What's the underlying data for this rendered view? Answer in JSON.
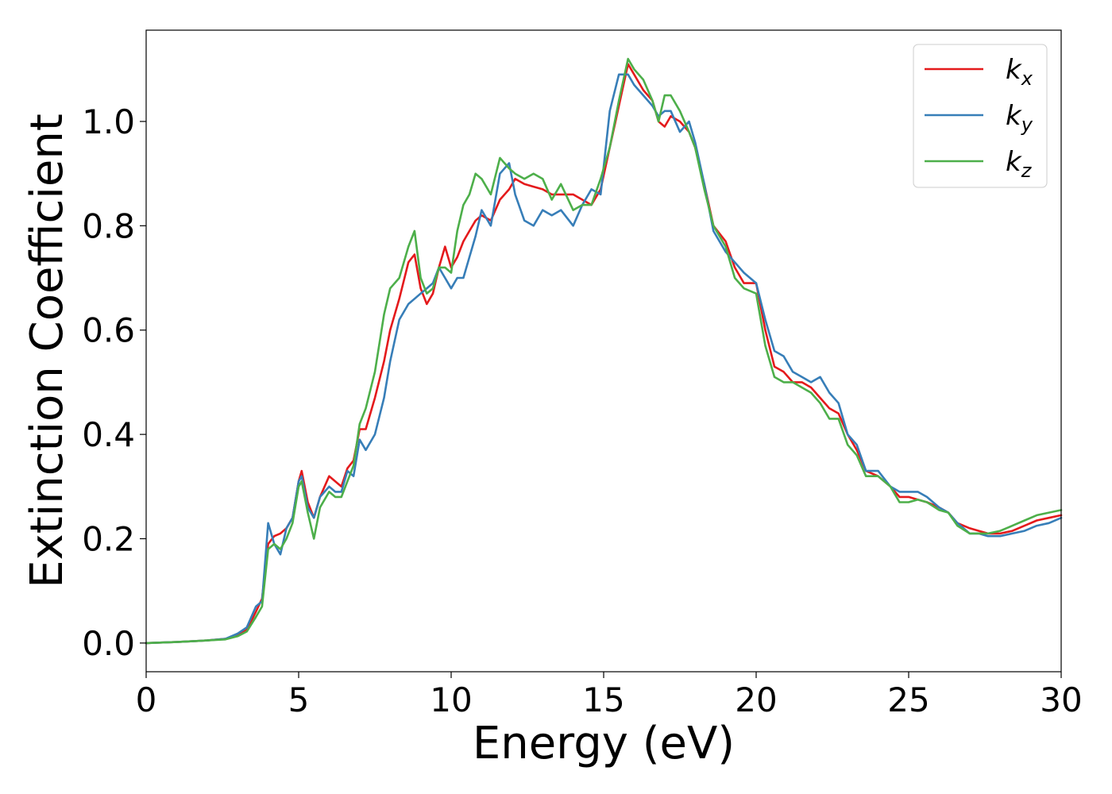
{
  "chart_data": {
    "type": "line",
    "xlabel": "Energy (eV)",
    "ylabel": "Extinction Coefficient",
    "xlim": [
      0,
      30
    ],
    "ylim": [
      -0.055,
      1.175
    ],
    "xticks": [
      0,
      5,
      10,
      15,
      20,
      25,
      30
    ],
    "xtick_labels": [
      "0",
      "5",
      "10",
      "15",
      "20",
      "25",
      "30"
    ],
    "yticks": [
      0.0,
      0.2,
      0.4,
      0.6,
      0.8,
      1.0
    ],
    "ytick_labels": [
      "0.0",
      "0.2",
      "0.4",
      "0.6",
      "0.8",
      "1.0"
    ],
    "grid": false,
    "legend_position": "top-right",
    "series": [
      {
        "name": "k",
        "subscript": "x",
        "color": "#e41a1c",
        "x": [
          0,
          1,
          2,
          2.6,
          3.0,
          3.3,
          3.6,
          3.8,
          4.0,
          4.2,
          4.4,
          4.6,
          4.8,
          5.0,
          5.1,
          5.3,
          5.5,
          5.7,
          6.0,
          6.2,
          6.4,
          6.6,
          6.8,
          7.0,
          7.2,
          7.5,
          7.8,
          8.0,
          8.3,
          8.6,
          8.8,
          9.0,
          9.2,
          9.4,
          9.6,
          9.8,
          10.0,
          10.2,
          10.4,
          10.6,
          10.8,
          11.0,
          11.3,
          11.6,
          11.9,
          12.1,
          12.4,
          12.7,
          13.0,
          13.3,
          13.6,
          14.0,
          14.3,
          14.6,
          14.9,
          15.2,
          15.5,
          15.8,
          16.0,
          16.3,
          16.6,
          16.8,
          17.0,
          17.2,
          17.5,
          17.8,
          18.0,
          18.3,
          18.6,
          19.0,
          19.3,
          19.6,
          20.0,
          20.3,
          20.6,
          20.9,
          21.2,
          21.5,
          21.8,
          22.1,
          22.4,
          22.7,
          23.0,
          23.3,
          23.6,
          24.0,
          24.4,
          24.7,
          25.0,
          25.3,
          25.6,
          26.0,
          26.3,
          26.6,
          27.0,
          27.3,
          27.6,
          28.0,
          28.4,
          28.8,
          29.2,
          29.6,
          30.0
        ],
        "y": [
          0.0,
          0.002,
          0.005,
          0.008,
          0.015,
          0.025,
          0.06,
          0.085,
          0.19,
          0.205,
          0.21,
          0.22,
          0.24,
          0.31,
          0.33,
          0.27,
          0.24,
          0.28,
          0.32,
          0.31,
          0.3,
          0.335,
          0.35,
          0.41,
          0.41,
          0.47,
          0.54,
          0.6,
          0.66,
          0.73,
          0.745,
          0.68,
          0.65,
          0.67,
          0.72,
          0.76,
          0.72,
          0.74,
          0.77,
          0.79,
          0.81,
          0.82,
          0.81,
          0.85,
          0.87,
          0.89,
          0.88,
          0.875,
          0.87,
          0.86,
          0.86,
          0.86,
          0.85,
          0.84,
          0.87,
          0.95,
          1.03,
          1.11,
          1.09,
          1.06,
          1.04,
          1.0,
          0.99,
          1.01,
          1.0,
          0.98,
          0.95,
          0.88,
          0.8,
          0.77,
          0.72,
          0.69,
          0.69,
          0.6,
          0.53,
          0.52,
          0.5,
          0.5,
          0.49,
          0.47,
          0.45,
          0.44,
          0.4,
          0.37,
          0.33,
          0.32,
          0.3,
          0.28,
          0.28,
          0.275,
          0.27,
          0.26,
          0.25,
          0.23,
          0.22,
          0.215,
          0.21,
          0.21,
          0.215,
          0.225,
          0.235,
          0.24,
          0.245
        ]
      },
      {
        "name": "k",
        "subscript": "y",
        "color": "#377eb8",
        "x": [
          0,
          1,
          2,
          2.6,
          3.0,
          3.3,
          3.6,
          3.8,
          4.0,
          4.2,
          4.4,
          4.6,
          4.8,
          5.0,
          5.1,
          5.3,
          5.5,
          5.7,
          6.0,
          6.2,
          6.4,
          6.6,
          6.8,
          7.0,
          7.2,
          7.5,
          7.8,
          8.0,
          8.3,
          8.6,
          8.8,
          9.0,
          9.2,
          9.4,
          9.6,
          9.8,
          10.0,
          10.2,
          10.4,
          10.6,
          10.8,
          11.0,
          11.3,
          11.6,
          11.9,
          12.1,
          12.4,
          12.7,
          13.0,
          13.3,
          13.6,
          14.0,
          14.3,
          14.6,
          14.9,
          15.2,
          15.5,
          15.8,
          16.0,
          16.3,
          16.6,
          16.8,
          17.0,
          17.2,
          17.5,
          17.8,
          18.0,
          18.3,
          18.6,
          19.0,
          19.3,
          19.6,
          20.0,
          20.3,
          20.6,
          20.9,
          21.2,
          21.5,
          21.8,
          22.1,
          22.4,
          22.7,
          23.0,
          23.3,
          23.6,
          24.0,
          24.4,
          24.7,
          25.0,
          25.3,
          25.6,
          26.0,
          26.3,
          26.6,
          27.0,
          27.3,
          27.6,
          28.0,
          28.4,
          28.8,
          29.2,
          29.6,
          30.0
        ],
        "y": [
          0.0,
          0.002,
          0.005,
          0.008,
          0.018,
          0.03,
          0.07,
          0.08,
          0.23,
          0.19,
          0.17,
          0.22,
          0.24,
          0.31,
          0.32,
          0.26,
          0.24,
          0.28,
          0.3,
          0.29,
          0.29,
          0.33,
          0.32,
          0.39,
          0.37,
          0.4,
          0.47,
          0.54,
          0.62,
          0.65,
          0.66,
          0.67,
          0.68,
          0.69,
          0.72,
          0.7,
          0.68,
          0.7,
          0.7,
          0.74,
          0.78,
          0.83,
          0.8,
          0.9,
          0.92,
          0.86,
          0.81,
          0.8,
          0.83,
          0.82,
          0.83,
          0.8,
          0.84,
          0.87,
          0.86,
          1.02,
          1.09,
          1.09,
          1.07,
          1.05,
          1.03,
          1.01,
          1.02,
          1.02,
          0.98,
          1.0,
          0.96,
          0.88,
          0.79,
          0.75,
          0.73,
          0.71,
          0.69,
          0.62,
          0.56,
          0.55,
          0.52,
          0.51,
          0.5,
          0.51,
          0.48,
          0.46,
          0.4,
          0.38,
          0.33,
          0.33,
          0.3,
          0.29,
          0.29,
          0.29,
          0.28,
          0.26,
          0.25,
          0.23,
          0.21,
          0.21,
          0.205,
          0.205,
          0.21,
          0.215,
          0.225,
          0.23,
          0.24
        ]
      },
      {
        "name": "k",
        "subscript": "z",
        "color": "#4daf4a",
        "x": [
          0,
          1,
          2,
          2.6,
          3.0,
          3.3,
          3.6,
          3.8,
          4.0,
          4.2,
          4.4,
          4.6,
          4.8,
          5.0,
          5.1,
          5.3,
          5.5,
          5.7,
          6.0,
          6.2,
          6.4,
          6.6,
          6.8,
          7.0,
          7.2,
          7.5,
          7.8,
          8.0,
          8.3,
          8.6,
          8.8,
          9.0,
          9.2,
          9.4,
          9.6,
          9.8,
          10.0,
          10.2,
          10.4,
          10.6,
          10.8,
          11.0,
          11.3,
          11.6,
          11.9,
          12.1,
          12.4,
          12.7,
          13.0,
          13.3,
          13.6,
          14.0,
          14.3,
          14.6,
          14.9,
          15.2,
          15.5,
          15.8,
          16.0,
          16.3,
          16.6,
          16.8,
          17.0,
          17.2,
          17.5,
          17.8,
          18.0,
          18.3,
          18.6,
          19.0,
          19.3,
          19.6,
          20.0,
          20.3,
          20.6,
          20.9,
          21.2,
          21.5,
          21.8,
          22.1,
          22.4,
          22.7,
          23.0,
          23.3,
          23.6,
          24.0,
          24.4,
          24.7,
          25.0,
          25.3,
          25.6,
          26.0,
          26.3,
          26.6,
          27.0,
          27.3,
          27.6,
          28.0,
          28.4,
          28.8,
          29.2,
          29.6,
          30.0
        ],
        "y": [
          0.0,
          0.002,
          0.005,
          0.007,
          0.013,
          0.022,
          0.05,
          0.07,
          0.18,
          0.19,
          0.18,
          0.2,
          0.23,
          0.3,
          0.31,
          0.25,
          0.2,
          0.26,
          0.29,
          0.28,
          0.28,
          0.31,
          0.34,
          0.42,
          0.45,
          0.52,
          0.63,
          0.68,
          0.7,
          0.76,
          0.79,
          0.7,
          0.67,
          0.68,
          0.72,
          0.72,
          0.71,
          0.79,
          0.84,
          0.86,
          0.9,
          0.89,
          0.86,
          0.93,
          0.91,
          0.9,
          0.89,
          0.9,
          0.89,
          0.85,
          0.88,
          0.83,
          0.84,
          0.84,
          0.89,
          0.95,
          1.04,
          1.12,
          1.1,
          1.08,
          1.04,
          1.0,
          1.05,
          1.05,
          1.02,
          0.98,
          0.95,
          0.87,
          0.8,
          0.76,
          0.7,
          0.68,
          0.67,
          0.57,
          0.51,
          0.5,
          0.5,
          0.49,
          0.48,
          0.46,
          0.43,
          0.43,
          0.38,
          0.36,
          0.32,
          0.32,
          0.3,
          0.27,
          0.27,
          0.275,
          0.27,
          0.255,
          0.25,
          0.225,
          0.21,
          0.21,
          0.21,
          0.215,
          0.225,
          0.235,
          0.245,
          0.25,
          0.255
        ]
      }
    ]
  }
}
